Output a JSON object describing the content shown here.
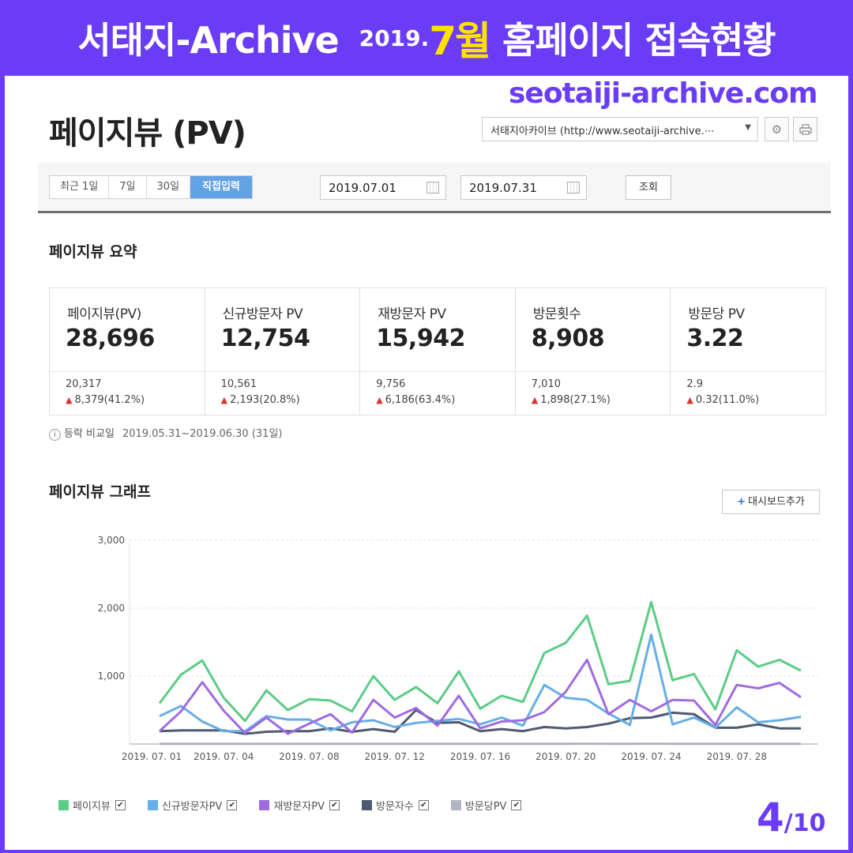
{
  "banner": {
    "main": "서태지-Archive",
    "year": "2019.",
    "month": "7월",
    "rest": "홈페이지 접속현황"
  },
  "site_url": "seotaiji-archive.com",
  "page_title": "페이지뷰 (PV)",
  "site_select": "서태지아카이브 (http://www.seotaiji-archive.⋯",
  "icons": {
    "settings": "gear-icon",
    "print": "printer-icon"
  },
  "toolbar": {
    "periods": [
      "최근 1일",
      "7일",
      "30일",
      "직접입력"
    ],
    "active_period": "직접입력",
    "start_date": "2019.07.01",
    "end_date": "2019.07.31",
    "query_label": "조회"
  },
  "summary": {
    "title": "페이지뷰 요약",
    "cards": [
      {
        "label": "페이지뷰(PV)",
        "value": "28,696",
        "prev": "20,317",
        "diff": "8,379(41.2%)"
      },
      {
        "label": "신규방문자 PV",
        "value": "12,754",
        "prev": "10,561",
        "diff": "2,193(20.8%)"
      },
      {
        "label": "재방문자 PV",
        "value": "15,942",
        "prev": "9,756",
        "diff": "6,186(63.4%)"
      },
      {
        "label": "방문횟수",
        "value": "8,908",
        "prev": "7,010",
        "diff": "1,898(27.1%)"
      },
      {
        "label": "방문당 PV",
        "value": "3.22",
        "prev": "2.9",
        "diff": "0.32(11.0%)"
      }
    ],
    "compare_label": "등락 비교일",
    "compare_dates": "2019.05.31~2019.06.30 (31일)"
  },
  "graph": {
    "title": "페이지뷰 그래프",
    "dashboard_button": "대시보드추가"
  },
  "chart_data": {
    "type": "line",
    "x": [
      "2019.07.01",
      "2019.07.02",
      "2019.07.03",
      "2019.07.04",
      "2019.07.05",
      "2019.07.06",
      "2019.07.07",
      "2019.07.08",
      "2019.07.09",
      "2019.07.10",
      "2019.07.11",
      "2019.07.12",
      "2019.07.13",
      "2019.07.14",
      "2019.07.15",
      "2019.07.16",
      "2019.07.17",
      "2019.07.18",
      "2019.07.19",
      "2019.07.20",
      "2019.07.21",
      "2019.07.22",
      "2019.07.23",
      "2019.07.24",
      "2019.07.25",
      "2019.07.26",
      "2019.07.27",
      "2019.07.28",
      "2019.07.29",
      "2019.07.30",
      "2019.07.31"
    ],
    "tick_labels": [
      "2019. 07. 01",
      "2019. 07. 04",
      "2019. 07. 08",
      "2019. 07. 12",
      "2019. 07. 16",
      "2019. 07. 20",
      "2019. 07. 24",
      "2019. 07. 28"
    ],
    "tick_indices": [
      0,
      3,
      7,
      11,
      15,
      19,
      23,
      27
    ],
    "y_ticks": [
      "3,000",
      "2,000",
      "1,000"
    ],
    "ylim": [
      0,
      3000
    ],
    "grid": true,
    "legend_position": "bottom-left",
    "series": [
      {
        "name": "페이지뷰",
        "color": "#5ccc86",
        "values": [
          600,
          1020,
          1230,
          680,
          340,
          790,
          500,
          660,
          640,
          480,
          1000,
          650,
          840,
          600,
          1070,
          520,
          710,
          620,
          1340,
          1490,
          1890,
          880,
          930,
          2090,
          940,
          1030,
          510,
          1380,
          1140,
          1240,
          1080
        ]
      },
      {
        "name": "신규방문자PV",
        "color": "#66aee8",
        "values": [
          410,
          560,
          330,
          190,
          190,
          410,
          360,
          360,
          200,
          320,
          350,
          250,
          310,
          340,
          370,
          290,
          390,
          270,
          870,
          680,
          650,
          450,
          280,
          1610,
          290,
          390,
          240,
          540,
          320,
          350,
          400
        ]
      },
      {
        "name": "재방문자PV",
        "color": "#a06be0",
        "values": [
          190,
          480,
          910,
          490,
          160,
          390,
          150,
          300,
          440,
          170,
          650,
          390,
          530,
          270,
          710,
          230,
          330,
          350,
          470,
          770,
          1240,
          440,
          650,
          480,
          650,
          640,
          280,
          870,
          820,
          900,
          690
        ]
      },
      {
        "name": "방문자수",
        "color": "#4d5a72",
        "values": [
          190,
          200,
          200,
          200,
          150,
          180,
          190,
          190,
          230,
          180,
          220,
          180,
          500,
          310,
          320,
          190,
          220,
          190,
          250,
          230,
          250,
          300,
          380,
          390,
          460,
          440,
          240,
          240,
          290,
          230,
          230
        ]
      },
      {
        "name": "방문당PV",
        "color": "#b0b6c2",
        "values": [
          3,
          3,
          4,
          3,
          2,
          3,
          3,
          3,
          3,
          3,
          4,
          3,
          3,
          3,
          4,
          3,
          3,
          3,
          4,
          4,
          5,
          3,
          3,
          5,
          3,
          3,
          3,
          4,
          3,
          4,
          4
        ]
      }
    ]
  },
  "page_num": {
    "current": "4",
    "total": "/10"
  }
}
